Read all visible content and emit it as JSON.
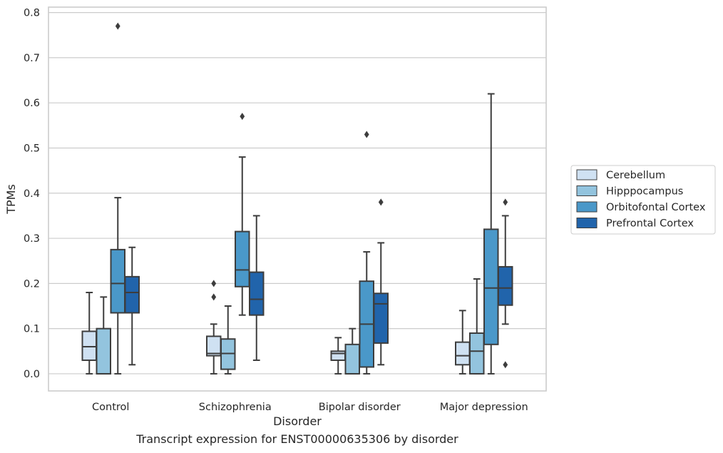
{
  "caption": "Transcript expression for ENST00000635306 by disorder",
  "colors": {
    "Cerebellum": "#cfe1f2",
    "Hipppocampus": "#93c4de",
    "Orbitofontal Cortex": "#4a98c9",
    "Prefrontal Cortex": "#2164ab",
    "line": "#3d3d3d",
    "grid": "#cccccc"
  },
  "chart_data": {
    "type": "box",
    "xlabel": "Disorder",
    "ylabel": "TPMs",
    "ylim": [
      -0.038,
      0.812
    ],
    "yticks": [
      "0.0",
      "0.1",
      "0.2",
      "0.3",
      "0.4",
      "0.5",
      "0.6",
      "0.7",
      "0.8"
    ],
    "grid": true,
    "legend_position": "right",
    "categories": [
      "Control",
      "Schizophrenia",
      "Bipolar disorder",
      "Major depression"
    ],
    "series": [
      {
        "name": "Cerebellum",
        "boxes": [
          {
            "whislo": 0.0,
            "q1": 0.03,
            "med": 0.06,
            "q3": 0.094,
            "whishi": 0.18,
            "fliers": []
          },
          {
            "whislo": 0.0,
            "q1": 0.04,
            "med": 0.045,
            "q3": 0.083,
            "whishi": 0.11,
            "fliers": [
              0.17,
              0.2
            ]
          },
          {
            "whislo": 0.0,
            "q1": 0.03,
            "med": 0.045,
            "q3": 0.05,
            "whishi": 0.08,
            "fliers": []
          },
          {
            "whislo": 0.0,
            "q1": 0.02,
            "med": 0.04,
            "q3": 0.07,
            "whishi": 0.14,
            "fliers": []
          }
        ]
      },
      {
        "name": "Hipppocampus",
        "boxes": [
          {
            "whislo": 0.0,
            "q1": 0.0,
            "med": 0.0,
            "q3": 0.1,
            "whishi": 0.17,
            "fliers": []
          },
          {
            "whislo": 0.0,
            "q1": 0.01,
            "med": 0.045,
            "q3": 0.077,
            "whishi": 0.15,
            "fliers": []
          },
          {
            "whislo": 0.0,
            "q1": 0.0,
            "med": 0.0,
            "q3": 0.065,
            "whishi": 0.1,
            "fliers": []
          },
          {
            "whislo": 0.0,
            "q1": 0.0,
            "med": 0.05,
            "q3": 0.09,
            "whishi": 0.21,
            "fliers": []
          }
        ]
      },
      {
        "name": "Orbitofontal Cortex",
        "boxes": [
          {
            "whislo": 0.0,
            "q1": 0.135,
            "med": 0.2,
            "q3": 0.275,
            "whishi": 0.39,
            "fliers": [
              0.77
            ]
          },
          {
            "whislo": 0.13,
            "q1": 0.193,
            "med": 0.23,
            "q3": 0.315,
            "whishi": 0.48,
            "fliers": [
              0.57
            ]
          },
          {
            "whislo": 0.0,
            "q1": 0.015,
            "med": 0.11,
            "q3": 0.205,
            "whishi": 0.27,
            "fliers": [
              0.53
            ]
          },
          {
            "whislo": 0.0,
            "q1": 0.065,
            "med": 0.19,
            "q3": 0.32,
            "whishi": 0.62,
            "fliers": []
          }
        ]
      },
      {
        "name": "Prefrontal Cortex",
        "boxes": [
          {
            "whislo": 0.02,
            "q1": 0.135,
            "med": 0.18,
            "q3": 0.215,
            "whishi": 0.28,
            "fliers": []
          },
          {
            "whislo": 0.03,
            "q1": 0.13,
            "med": 0.165,
            "q3": 0.225,
            "whishi": 0.35,
            "fliers": []
          },
          {
            "whislo": 0.02,
            "q1": 0.068,
            "med": 0.155,
            "q3": 0.178,
            "whishi": 0.29,
            "fliers": [
              0.38
            ]
          },
          {
            "whislo": 0.11,
            "q1": 0.152,
            "med": 0.19,
            "q3": 0.237,
            "whishi": 0.35,
            "fliers": [
              0.38,
              0.02
            ]
          }
        ]
      }
    ]
  }
}
